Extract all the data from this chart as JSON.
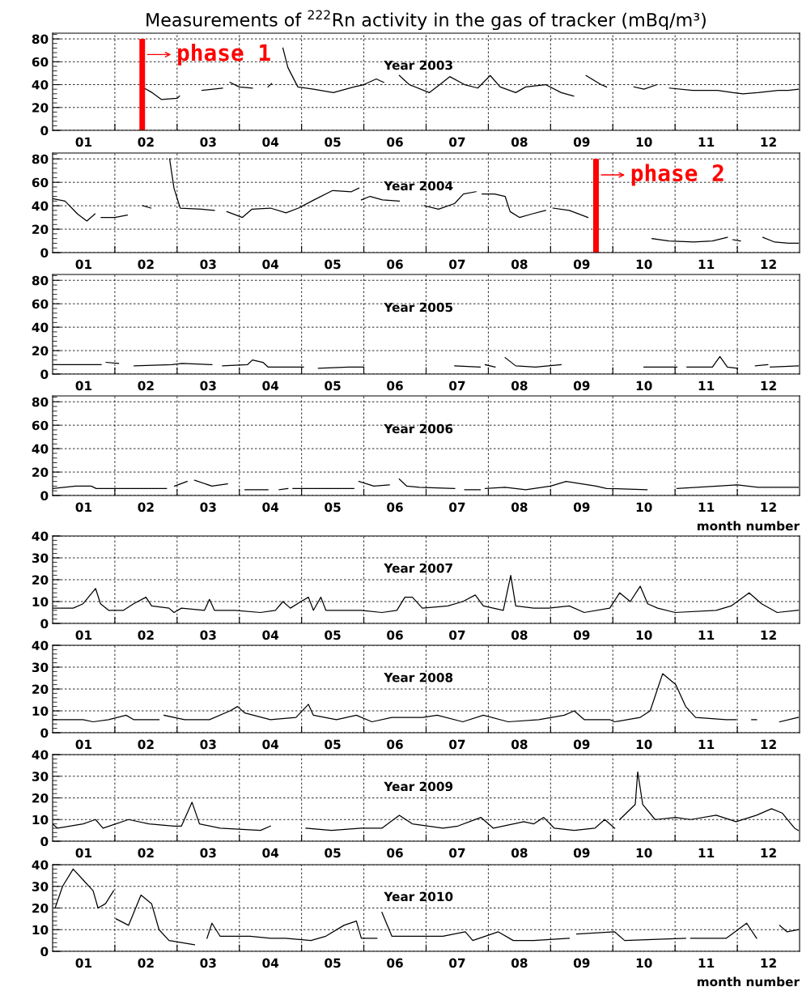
{
  "chart_data": [
    {
      "type": "line",
      "title": "Measurements of $^{222}$Rn activity in the gas of tracker (mBq/m³)",
      "annotations": [
        "Year 2003"
      ],
      "x": [
        1.47,
        1.6,
        1.75,
        2.0,
        2.04,
        2.2,
        2.4,
        2.73,
        2.79,
        2.85,
        3.0,
        3.21,
        3.3,
        3.46,
        3.52,
        3.58,
        3.7,
        3.78,
        3.94,
        4.19,
        4.51,
        4.84,
        5.0,
        5.2,
        5.32,
        5.45,
        5.57,
        5.73,
        6.05,
        6.22,
        6.38,
        6.62,
        6.83,
        7.03,
        7.19,
        7.44,
        7.6,
        7.92,
        8.17,
        8.37,
        8.47,
        8.57,
        8.81,
        8.9,
        9.1,
        9.34,
        9.5,
        9.71,
        9.8,
        9.91,
        10.28,
        10.68,
        10.93,
        11.09,
        11.33,
        11.66,
        11.82,
        11.98
      ],
      "series": [
        {
          "color": "#000000",
          "values": [
            37,
            33,
            27,
            28,
            30,
            null,
            35,
            37,
            null,
            42,
            38,
            37,
            null,
            38,
            41,
            null,
            72,
            55,
            38,
            36,
            33,
            38,
            40,
            45,
            42,
            null,
            48,
            40,
            33,
            40,
            47,
            40,
            37,
            48,
            38,
            33,
            38,
            40,
            33,
            30,
            null,
            48,
            40,
            38,
            null,
            38,
            36,
            40,
            null,
            37,
            35,
            35,
            33,
            32,
            33,
            35,
            35,
            36
          ]
        }
      ],
      "ref_lines": [
        {
          "axis": "x",
          "value": 1.44,
          "label": "phase 1",
          "color": "#ff0000"
        }
      ],
      "xlim": [
        0,
        12
      ],
      "xticks": [
        {
          "value": 0.5,
          "label": "01"
        },
        {
          "value": 1,
          "label": null
        },
        {
          "value": 1.5,
          "label": "02"
        },
        {
          "value": 2,
          "label": null
        },
        {
          "value": 2.5,
          "label": "03"
        },
        {
          "value": 3,
          "label": null
        },
        {
          "value": 3.5,
          "label": "04"
        },
        {
          "value": 4,
          "label": null
        },
        {
          "value": 4.5,
          "label": "05"
        },
        {
          "value": 5,
          "label": null
        },
        {
          "value": 5.5,
          "label": "06"
        },
        {
          "value": 6,
          "label": null
        },
        {
          "value": 6.5,
          "label": "07"
        },
        {
          "value": 7,
          "label": null
        },
        {
          "value": 7.5,
          "label": "08"
        },
        {
          "value": 8,
          "label": null
        },
        {
          "value": 8.5,
          "label": "09"
        },
        {
          "value": 9,
          "label": null
        },
        {
          "value": 9.5,
          "label": "10"
        },
        {
          "value": 10,
          "label": null
        },
        {
          "value": 10.5,
          "label": "11"
        },
        {
          "value": 11,
          "label": null
        },
        {
          "value": 11.5,
          "label": "12"
        }
      ],
      "ylim": [
        0,
        85
      ],
      "yticks": [
        0,
        20,
        40,
        60,
        80
      ],
      "grid": true,
      "line_style": "solid",
      "marker": "none"
    },
    {
      "type": "line",
      "annotations": [
        "Year 2004"
      ],
      "x": [
        0,
        0.2,
        0.4,
        0.55,
        0.68,
        0.72,
        0.78,
        1.0,
        1.2,
        1.28,
        1.45,
        1.58,
        1.62,
        1.88,
        1.95,
        2.05,
        2.4,
        2.6,
        2.65,
        2.8,
        3.05,
        3.2,
        3.5,
        3.75,
        3.95,
        4.2,
        4.5,
        4.8,
        4.92,
        4.94,
        4.96,
        5.1,
        5.3,
        5.57,
        5.65,
        5.97,
        6.2,
        6.46,
        6.6,
        6.8,
        6.85,
        6.9,
        7.1,
        7.27,
        7.35,
        7.5,
        7.7,
        7.92,
        7.98,
        8.04,
        8.3,
        8.5,
        8.6,
        8.65,
        9.63,
        9.9,
        10.3,
        10.6,
        10.84,
        10.88,
        10.93,
        11.05,
        11.2,
        11.41,
        11.6,
        11.82,
        11.98
      ],
      "series": [
        {
          "color": "#000000",
          "values": [
            46,
            44,
            33,
            27,
            33,
            null,
            30,
            30,
            32,
            null,
            40,
            38,
            null,
            80,
            55,
            38,
            37,
            36,
            null,
            35,
            30,
            37,
            38,
            34,
            38,
            45,
            53,
            52,
            55,
            null,
            45,
            48,
            45,
            44,
            null,
            40,
            37,
            42,
            50,
            52,
            null,
            50,
            50,
            48,
            35,
            30,
            33,
            36,
            null,
            38,
            36,
            32,
            30,
            null,
            12,
            10,
            9,
            10,
            13,
            null,
            11,
            10,
            null,
            13,
            9,
            8,
            8
          ]
        }
      ],
      "ref_lines": [
        {
          "axis": "x",
          "value": 8.73,
          "label": "phase 2",
          "color": "#ff0000"
        }
      ],
      "xlim": [
        0,
        12
      ],
      "xticks": [
        {
          "value": 0.5,
          "label": "01"
        },
        {
          "value": 1,
          "label": null
        },
        {
          "value": 1.5,
          "label": "02"
        },
        {
          "value": 2,
          "label": null
        },
        {
          "value": 2.5,
          "label": "03"
        },
        {
          "value": 3,
          "label": null
        },
        {
          "value": 3.5,
          "label": "04"
        },
        {
          "value": 4,
          "label": null
        },
        {
          "value": 4.5,
          "label": "05"
        },
        {
          "value": 5,
          "label": null
        },
        {
          "value": 5.5,
          "label": "06"
        },
        {
          "value": 6,
          "label": null
        },
        {
          "value": 6.5,
          "label": "07"
        },
        {
          "value": 7,
          "label": null
        },
        {
          "value": 7.5,
          "label": "08"
        },
        {
          "value": 8,
          "label": null
        },
        {
          "value": 8.5,
          "label": "09"
        },
        {
          "value": 9,
          "label": null
        },
        {
          "value": 9.5,
          "label": "10"
        },
        {
          "value": 10,
          "label": null
        },
        {
          "value": 10.5,
          "label": "11"
        },
        {
          "value": 11,
          "label": null
        },
        {
          "value": 11.5,
          "label": "12"
        }
      ],
      "ylim": [
        0,
        85
      ],
      "yticks": [
        0,
        20,
        40,
        60,
        80
      ],
      "grid": true,
      "line_style": "solid",
      "marker": "none"
    },
    {
      "type": "line",
      "annotations": [
        "Year 2005"
      ],
      "x": [
        0,
        0.78,
        0.82,
        0.86,
        1.06,
        1.2,
        1.31,
        1.92,
        2.08,
        2.56,
        2.65,
        2.73,
        3.13,
        3.21,
        3.38,
        3.46,
        4.03,
        4.15,
        4.27,
        4.76,
        5.0,
        5.3,
        6.46,
        6.87,
        6.91,
        6.95,
        7.11,
        7.2,
        7.27,
        7.44,
        7.76,
        8.17,
        8.3,
        9.5,
        10.03,
        10.1,
        10.19,
        10.6,
        10.72,
        10.84,
        11.0,
        11.15,
        11.29,
        11.49,
        11.51,
        11.53,
        11.98
      ],
      "series": [
        {
          "color": "#000000",
          "values": [
            8,
            8,
            null,
            10,
            9,
            null,
            7,
            8,
            9,
            8,
            null,
            7,
            8,
            12,
            10,
            6,
            6,
            null,
            5,
            6,
            6,
            null,
            7,
            6,
            null,
            8,
            6,
            null,
            14,
            7,
            6,
            8,
            null,
            6,
            6,
            null,
            6,
            6,
            15,
            6,
            5,
            null,
            7,
            8,
            null,
            6,
            7
          ]
        }
      ],
      "xlim": [
        0,
        12
      ],
      "xticks": [
        {
          "value": 0.5,
          "label": "01"
        },
        {
          "value": 1,
          "label": null
        },
        {
          "value": 1.5,
          "label": "02"
        },
        {
          "value": 2,
          "label": null
        },
        {
          "value": 2.5,
          "label": "03"
        },
        {
          "value": 3,
          "label": null
        },
        {
          "value": 3.5,
          "label": "04"
        },
        {
          "value": 4,
          "label": null
        },
        {
          "value": 4.5,
          "label": "05"
        },
        {
          "value": 5,
          "label": null
        },
        {
          "value": 5.5,
          "label": "06"
        },
        {
          "value": 6,
          "label": null
        },
        {
          "value": 6.5,
          "label": "07"
        },
        {
          "value": 7,
          "label": null
        },
        {
          "value": 7.5,
          "label": "08"
        },
        {
          "value": 8,
          "label": null
        },
        {
          "value": 8.5,
          "label": "09"
        },
        {
          "value": 9,
          "label": null
        },
        {
          "value": 9.5,
          "label": "10"
        },
        {
          "value": 10,
          "label": null
        },
        {
          "value": 10.5,
          "label": "11"
        },
        {
          "value": 11,
          "label": null
        },
        {
          "value": 11.5,
          "label": "12"
        }
      ],
      "ylim": [
        0,
        85
      ],
      "yticks": [
        0,
        20,
        40,
        60,
        80
      ],
      "grid": true,
      "line_style": "solid",
      "marker": "none"
    },
    {
      "type": "line",
      "annotations": [
        "Year 2006"
      ],
      "xlabel": "month number",
      "x": [
        0,
        0.37,
        0.62,
        0.7,
        1.1,
        1.83,
        1.9,
        1.96,
        2.16,
        2.22,
        2.28,
        2.56,
        2.81,
        2.95,
        3.09,
        3.46,
        3.55,
        3.64,
        3.78,
        3.82,
        3.86,
        4.84,
        4.88,
        4.92,
        5.16,
        5.41,
        5.5,
        5.57,
        5.69,
        5.89,
        6.46,
        6.54,
        6.62,
        6.87,
        6.91,
        6.95,
        7.27,
        7.6,
        8.0,
        8.25,
        8.73,
        8.9,
        9.55,
        9.87,
        10.03,
        10.68,
        11.0,
        11.33,
        11.98
      ],
      "series": [
        {
          "color": "#000000",
          "values": [
            6,
            8,
            8,
            6,
            6,
            6,
            null,
            8,
            12,
            null,
            13,
            8,
            10,
            null,
            5,
            5,
            null,
            5,
            6,
            null,
            6,
            6,
            null,
            12,
            8,
            9,
            null,
            14,
            8,
            7,
            6,
            null,
            5,
            5,
            null,
            6,
            7,
            5,
            8,
            12,
            8,
            6,
            5,
            null,
            6,
            8,
            9,
            7,
            7
          ]
        }
      ],
      "xlim": [
        0,
        12
      ],
      "xticks": [
        {
          "value": 0.5,
          "label": "01"
        },
        {
          "value": 1,
          "label": null
        },
        {
          "value": 1.5,
          "label": "02"
        },
        {
          "value": 2,
          "label": null
        },
        {
          "value": 2.5,
          "label": "03"
        },
        {
          "value": 3,
          "label": null
        },
        {
          "value": 3.5,
          "label": "04"
        },
        {
          "value": 4,
          "label": null
        },
        {
          "value": 4.5,
          "label": "05"
        },
        {
          "value": 5,
          "label": null
        },
        {
          "value": 5.5,
          "label": "06"
        },
        {
          "value": 6,
          "label": null
        },
        {
          "value": 6.5,
          "label": "07"
        },
        {
          "value": 7,
          "label": null
        },
        {
          "value": 7.5,
          "label": "08"
        },
        {
          "value": 8,
          "label": null
        },
        {
          "value": 8.5,
          "label": "09"
        },
        {
          "value": 9,
          "label": null
        },
        {
          "value": 9.5,
          "label": "10"
        },
        {
          "value": 10,
          "label": null
        },
        {
          "value": 10.5,
          "label": "11"
        },
        {
          "value": 11,
          "label": null
        },
        {
          "value": 11.5,
          "label": "12"
        }
      ],
      "ylim": [
        0,
        85
      ],
      "yticks": [
        0,
        20,
        40,
        60,
        80
      ],
      "grid": true,
      "line_style": "solid",
      "marker": "none"
    },
    {
      "type": "line",
      "annotations": [
        "Year 2007"
      ],
      "x": [
        0,
        0.33,
        0.49,
        0.69,
        0.77,
        0.9,
        1.14,
        1.3,
        1.5,
        1.59,
        1.87,
        1.95,
        2.07,
        2.44,
        2.52,
        2.6,
        2.93,
        3.34,
        3.58,
        3.7,
        3.82,
        3.99,
        4.11,
        4.19,
        4.31,
        4.39,
        4.96,
        5.29,
        5.53,
        5.66,
        5.78,
        5.94,
        6.35,
        6.59,
        6.79,
        6.92,
        7.24,
        7.36,
        7.44,
        7.73,
        7.97,
        8.3,
        8.54,
        8.95,
        9.11,
        9.28,
        9.44,
        9.56,
        9.72,
        10.0,
        10.66,
        10.9,
        11.19,
        11.39,
        11.64,
        11.98
      ],
      "series": [
        {
          "color": "#000000",
          "values": [
            7,
            7,
            9,
            16,
            9,
            6,
            6,
            9,
            12,
            8,
            7,
            5,
            7,
            6,
            11,
            6,
            6,
            5,
            6,
            10,
            7,
            10,
            12,
            6,
            12,
            6,
            6,
            5,
            6,
            12,
            12,
            7,
            8,
            10,
            13,
            8,
            6,
            22,
            8,
            7,
            7,
            8,
            5,
            7,
            14,
            10,
            17,
            9,
            7,
            5,
            6,
            8,
            14,
            9,
            5,
            6
          ]
        }
      ],
      "xlim": [
        0,
        12
      ],
      "xticks": [
        {
          "value": 0.5,
          "label": "01"
        },
        {
          "value": 1,
          "label": null
        },
        {
          "value": 1.5,
          "label": "02"
        },
        {
          "value": 2,
          "label": null
        },
        {
          "value": 2.5,
          "label": "03"
        },
        {
          "value": 3,
          "label": null
        },
        {
          "value": 3.5,
          "label": "04"
        },
        {
          "value": 4,
          "label": null
        },
        {
          "value": 4.5,
          "label": "05"
        },
        {
          "value": 5,
          "label": null
        },
        {
          "value": 5.5,
          "label": "06"
        },
        {
          "value": 6,
          "label": null
        },
        {
          "value": 6.5,
          "label": "07"
        },
        {
          "value": 7,
          "label": null
        },
        {
          "value": 7.5,
          "label": "08"
        },
        {
          "value": 8,
          "label": null
        },
        {
          "value": 8.5,
          "label": "09"
        },
        {
          "value": 9,
          "label": null
        },
        {
          "value": 9.5,
          "label": "10"
        },
        {
          "value": 10,
          "label": null
        },
        {
          "value": 10.5,
          "label": "11"
        },
        {
          "value": 11,
          "label": null
        },
        {
          "value": 11.5,
          "label": "12"
        }
      ],
      "ylim": [
        0,
        40
      ],
      "yticks": [
        0,
        10,
        20,
        30,
        40
      ],
      "grid": true,
      "line_style": "solid",
      "marker": "none"
    },
    {
      "type": "line",
      "annotations": [
        "Year 2008"
      ],
      "x": [
        0,
        0.49,
        0.65,
        0.9,
        1.18,
        1.3,
        1.71,
        1.75,
        1.79,
        2.12,
        2.52,
        2.85,
        2.97,
        3.09,
        3.5,
        3.91,
        4.11,
        4.19,
        4.56,
        4.88,
        5.13,
        5.45,
        5.94,
        6.18,
        6.59,
        6.92,
        7.32,
        7.81,
        8.22,
        8.38,
        8.54,
        8.95,
        9.03,
        9.44,
        9.6,
        9.8,
        10.01,
        10.17,
        10.33,
        10.82,
        10.98,
        11.1,
        11.23,
        11.31,
        11.5,
        11.68,
        11.98
      ],
      "series": [
        {
          "color": "#000000",
          "values": [
            6,
            6,
            5,
            6,
            8,
            6,
            6,
            null,
            8,
            6,
            6,
            10,
            12,
            9,
            6,
            7,
            13,
            8,
            6,
            8,
            5,
            7,
            7,
            8,
            5,
            8,
            5,
            6,
            8,
            10,
            6,
            6,
            5,
            7,
            10,
            27,
            22,
            12,
            7,
            6,
            6,
            null,
            6,
            6,
            null,
            5,
            7
          ]
        }
      ],
      "xlim": [
        0,
        12
      ],
      "xticks": [
        {
          "value": 0.5,
          "label": "01"
        },
        {
          "value": 1,
          "label": null
        },
        {
          "value": 1.5,
          "label": "02"
        },
        {
          "value": 2,
          "label": null
        },
        {
          "value": 2.5,
          "label": "03"
        },
        {
          "value": 3,
          "label": null
        },
        {
          "value": 3.5,
          "label": "04"
        },
        {
          "value": 4,
          "label": null
        },
        {
          "value": 4.5,
          "label": "05"
        },
        {
          "value": 5,
          "label": null
        },
        {
          "value": 5.5,
          "label": "06"
        },
        {
          "value": 6,
          "label": null
        },
        {
          "value": 6.5,
          "label": "07"
        },
        {
          "value": 7,
          "label": null
        },
        {
          "value": 7.5,
          "label": "08"
        },
        {
          "value": 8,
          "label": null
        },
        {
          "value": 8.5,
          "label": "09"
        },
        {
          "value": 9,
          "label": null
        },
        {
          "value": 9.5,
          "label": "10"
        },
        {
          "value": 10,
          "label": null
        },
        {
          "value": 10.5,
          "label": "11"
        },
        {
          "value": 11,
          "label": null
        },
        {
          "value": 11.5,
          "label": "12"
        }
      ],
      "ylim": [
        0,
        40
      ],
      "yticks": [
        0,
        10,
        20,
        30,
        40
      ],
      "grid": true,
      "line_style": "solid",
      "marker": "none"
    },
    {
      "type": "line",
      "annotations": [
        "Year 2009"
      ],
      "x": [
        0,
        0.08,
        0.49,
        0.69,
        0.81,
        1.22,
        1.55,
        1.95,
        2.07,
        2.24,
        2.36,
        2.69,
        3.34,
        3.5,
        3.8,
        4.07,
        4.48,
        4.96,
        5.29,
        5.57,
        5.78,
        6.27,
        6.51,
        6.88,
        7.08,
        7.57,
        7.73,
        7.89,
        8.06,
        8.38,
        8.71,
        8.87,
        9.03,
        9.07,
        9.11,
        9.36,
        9.4,
        9.48,
        9.68,
        10.01,
        10.25,
        10.66,
        10.98,
        11.31,
        11.55,
        11.72,
        11.92,
        11.98
      ],
      "series": [
        {
          "color": "#000000",
          "values": [
            8,
            6,
            8,
            10,
            6,
            10,
            8,
            7,
            7,
            18,
            8,
            6,
            5,
            7,
            null,
            6,
            5,
            6,
            6,
            12,
            8,
            6,
            7,
            11,
            6,
            9,
            8,
            11,
            6,
            5,
            6,
            10,
            6,
            null,
            10,
            17,
            32,
            17,
            10,
            11,
            10,
            12,
            9,
            12,
            15,
            13,
            6,
            5
          ]
        }
      ],
      "xlim": [
        0,
        12
      ],
      "xticks": [
        {
          "value": 0.5,
          "label": "01"
        },
        {
          "value": 1,
          "label": null
        },
        {
          "value": 1.5,
          "label": "02"
        },
        {
          "value": 2,
          "label": null
        },
        {
          "value": 2.5,
          "label": "03"
        },
        {
          "value": 3,
          "label": null
        },
        {
          "value": 3.5,
          "label": "04"
        },
        {
          "value": 4,
          "label": null
        },
        {
          "value": 4.5,
          "label": "05"
        },
        {
          "value": 5,
          "label": null
        },
        {
          "value": 5.5,
          "label": "06"
        },
        {
          "value": 6,
          "label": null
        },
        {
          "value": 6.5,
          "label": "07"
        },
        {
          "value": 7,
          "label": null
        },
        {
          "value": 7.5,
          "label": "08"
        },
        {
          "value": 8,
          "label": null
        },
        {
          "value": 8.5,
          "label": "09"
        },
        {
          "value": 9,
          "label": null
        },
        {
          "value": 9.5,
          "label": "10"
        },
        {
          "value": 10,
          "label": null
        },
        {
          "value": 10.5,
          "label": "11"
        },
        {
          "value": 11,
          "label": null
        },
        {
          "value": 11.5,
          "label": "12"
        }
      ],
      "ylim": [
        0,
        40
      ],
      "yticks": [
        0,
        10,
        20,
        30,
        40
      ],
      "grid": true,
      "line_style": "solid",
      "marker": "none"
    },
    {
      "type": "line",
      "annotations": [
        "Year 2010"
      ],
      "xlabel": "month number",
      "x": [
        0.04,
        0.16,
        0.33,
        0.49,
        0.65,
        0.73,
        0.85,
        0.98,
        1.0,
        1.02,
        1.22,
        1.42,
        1.59,
        1.71,
        1.87,
        2.28,
        2.38,
        2.48,
        2.56,
        2.69,
        3.17,
        3.5,
        3.74,
        4.15,
        4.39,
        4.68,
        4.88,
        4.96,
        5.21,
        5.25,
        5.29,
        5.45,
        6.02,
        6.27,
        6.63,
        6.75,
        7.16,
        7.4,
        7.73,
        8.3,
        8.36,
        8.42,
        9.03,
        9.19,
        10.17,
        10.21,
        10.25,
        10.82,
        11.15,
        11.31,
        11.5,
        11.68,
        11.8,
        11.98
      ],
      "series": [
        {
          "color": "#000000",
          "values": [
            20,
            30,
            38,
            33,
            28,
            20,
            22,
            28,
            null,
            15,
            12,
            26,
            22,
            10,
            5,
            3,
            null,
            6,
            13,
            7,
            7,
            6,
            6,
            5,
            7,
            12,
            14,
            6,
            6,
            null,
            18,
            7,
            7,
            7,
            9,
            5,
            9,
            5,
            5,
            6,
            null,
            8,
            9,
            5,
            6,
            null,
            6,
            6,
            13,
            6,
            null,
            12,
            9,
            10
          ]
        }
      ],
      "xlim": [
        0,
        12
      ],
      "xticks": [
        {
          "value": 0.5,
          "label": "01"
        },
        {
          "value": 1,
          "label": null
        },
        {
          "value": 1.5,
          "label": "02"
        },
        {
          "value": 2,
          "label": null
        },
        {
          "value": 2.5,
          "label": "03"
        },
        {
          "value": 3,
          "label": null
        },
        {
          "value": 3.5,
          "label": "04"
        },
        {
          "value": 4,
          "label": null
        },
        {
          "value": 4.5,
          "label": "05"
        },
        {
          "value": 5,
          "label": null
        },
        {
          "value": 5.5,
          "label": "06"
        },
        {
          "value": 6,
          "label": null
        },
        {
          "value": 6.5,
          "label": "07"
        },
        {
          "value": 7,
          "label": null
        },
        {
          "value": 7.5,
          "label": "08"
        },
        {
          "value": 8,
          "label": null
        },
        {
          "value": 8.5,
          "label": "09"
        },
        {
          "value": 9,
          "label": null
        },
        {
          "value": 9.5,
          "label": "10"
        },
        {
          "value": 10,
          "label": null
        },
        {
          "value": 10.5,
          "label": "11"
        },
        {
          "value": 11,
          "label": null
        },
        {
          "value": 11.5,
          "label": "12"
        }
      ],
      "ylim": [
        0,
        40
      ],
      "yticks": [
        0,
        10,
        20,
        30,
        40
      ],
      "grid": true,
      "line_style": "solid",
      "marker": "none"
    }
  ]
}
